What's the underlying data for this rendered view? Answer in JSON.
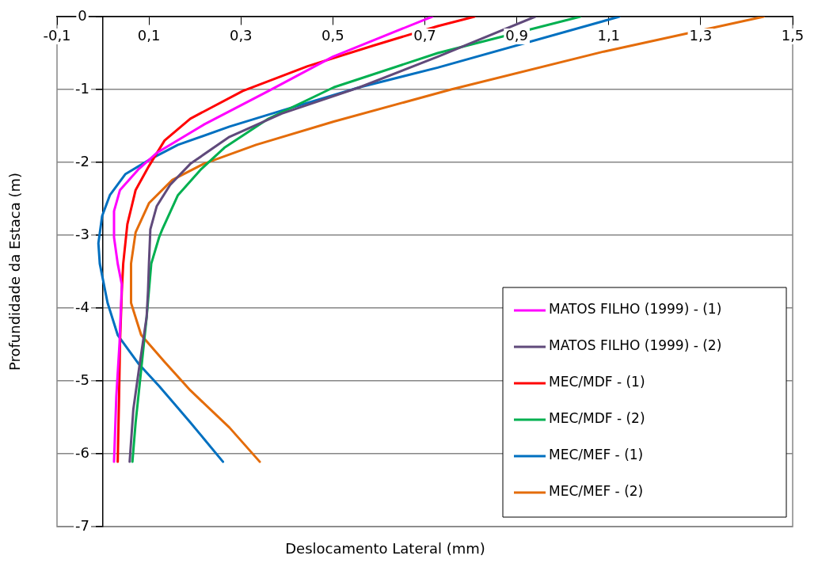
{
  "chart_data": {
    "type": "line",
    "xlabel": "Deslocamento Lateral (mm)",
    "ylabel": "Profundidade da Estaca (m)",
    "xlim": [
      -0.1,
      1.5
    ],
    "ylim": [
      -7,
      0
    ],
    "xticks": [
      {
        "value": -0.1,
        "label": "-0,1"
      },
      {
        "value": 0.1,
        "label": "0,1"
      },
      {
        "value": 0.3,
        "label": "0,3"
      },
      {
        "value": 0.5,
        "label": "0,5"
      },
      {
        "value": 0.7,
        "label": "0,7"
      },
      {
        "value": 0.9,
        "label": "0,9"
      },
      {
        "value": 1.1,
        "label": "1,1"
      },
      {
        "value": 1.3,
        "label": "1,3"
      },
      {
        "value": 1.5,
        "label": "1,5"
      }
    ],
    "yticks": [
      -7,
      -6,
      -5,
      -4,
      -3,
      -2,
      -1,
      0
    ],
    "grid": "y",
    "legend": "bottom right",
    "marker": "none",
    "line_style": "solid",
    "series": [
      {
        "name": "MATOS FILHO (1999) - (1)",
        "color": "#ff00ff",
        "x": [
          0.716,
          0.5,
          0.36,
          0.22,
          0.117,
          0.078,
          0.037,
          0.024,
          0.024,
          0.032,
          0.041,
          0.036,
          0.029,
          0.024
        ],
        "values": [
          0,
          -0.55,
          -1.02,
          -1.48,
          -1.87,
          -2.09,
          -2.38,
          -2.67,
          -3.03,
          -3.39,
          -3.68,
          -4.48,
          -5.21,
          -6.11
        ]
      },
      {
        "name": "MATOS FILHO (1999) - (2)",
        "color": "#604a7b",
        "x": [
          0.94,
          0.728,
          0.558,
          0.389,
          0.275,
          0.19,
          0.146,
          0.117,
          0.103,
          0.1,
          0.098,
          0.095,
          0.078,
          0.066,
          0.058
        ],
        "values": [
          0,
          -0.55,
          -0.97,
          -1.33,
          -1.65,
          -2.02,
          -2.31,
          -2.6,
          -2.92,
          -3.39,
          -3.76,
          -4.12,
          -4.85,
          -5.39,
          -6.11
        ]
      },
      {
        "name": "MEC/MDF - (1)",
        "color": "#ff0000",
        "x": [
          0.808,
          0.728,
          0.587,
          0.445,
          0.304,
          0.19,
          0.134,
          0.1,
          0.071,
          0.053,
          0.044,
          0.041,
          0.037,
          0.035,
          0.032
        ],
        "values": [
          0,
          -0.13,
          -0.4,
          -0.68,
          -1.02,
          -1.4,
          -1.7,
          -2.05,
          -2.38,
          -2.85,
          -3.39,
          -3.76,
          -4.48,
          -5.21,
          -6.11
        ]
      },
      {
        "name": "MEC/MDF - (2)",
        "color": "#00b050",
        "x": [
          1.038,
          0.728,
          0.502,
          0.36,
          0.264,
          0.214,
          0.163,
          0.129,
          0.122,
          0.105,
          0.095,
          0.083,
          0.071,
          0.064
        ],
        "values": [
          0,
          -0.5,
          -0.97,
          -1.4,
          -1.8,
          -2.09,
          -2.45,
          -2.92,
          -3.03,
          -3.39,
          -4.12,
          -4.85,
          -5.57,
          -6.11
        ]
      },
      {
        "name": "MEC/MEF - (1)",
        "color": "#0070c0",
        "x": [
          1.123,
          0.728,
          0.558,
          0.389,
          0.275,
          0.163,
          0.105,
          0.049,
          0.015,
          -0.002,
          -0.01,
          -0.007,
          0.01,
          0.032,
          0.078,
          0.122,
          0.19,
          0.261
        ],
        "values": [
          0,
          -0.7,
          -0.97,
          -1.29,
          -1.51,
          -1.76,
          -1.95,
          -2.16,
          -2.45,
          -2.74,
          -3.11,
          -3.39,
          -3.93,
          -4.37,
          -4.77,
          -5.07,
          -5.57,
          -6.11
        ]
      },
      {
        "name": "MEC/MEF - (2)",
        "color": "#e46c0a",
        "x": [
          1.437,
          1.089,
          0.757,
          0.502,
          0.333,
          0.219,
          0.151,
          0.1,
          0.071,
          0.061,
          0.061,
          0.083,
          0.134,
          0.19,
          0.275,
          0.341
        ],
        "values": [
          0,
          -0.48,
          -1.0,
          -1.44,
          -1.76,
          -2.02,
          -2.24,
          -2.56,
          -2.96,
          -3.39,
          -3.93,
          -4.37,
          -4.74,
          -5.13,
          -5.64,
          -6.11
        ]
      }
    ]
  }
}
